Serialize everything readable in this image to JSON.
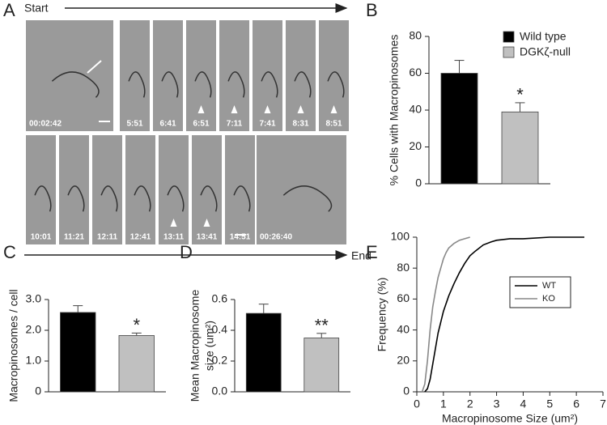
{
  "figure": {
    "panel_labels": [
      "A",
      "B",
      "C",
      "D",
      "E"
    ],
    "panel_a": {
      "start": "Start",
      "end": "End",
      "timestamps": [
        "00:02:42",
        "5:51",
        "6:41",
        "6:51",
        "7:11",
        "7:41",
        "8:31",
        "8:51",
        "10:01",
        "11:21",
        "12:11",
        "12:41",
        "13:11",
        "13:41",
        "14:51",
        "00:26:40"
      ]
    }
  },
  "chart_data": [
    {
      "type": "bar",
      "ylabel": "% Cells with Macropinosomes",
      "categories": [
        null
      ],
      "series": [
        {
          "name": "Wild type",
          "color": "#000000",
          "values": [
            60
          ],
          "errors": [
            7
          ]
        },
        {
          "name": "DGKζ-null",
          "color": "#c0c0c0",
          "values": [
            39
          ],
          "errors": [
            5
          ]
        }
      ],
      "annotation": "*",
      "legend": "upper right",
      "ylim": [
        0,
        80
      ],
      "yticks": [
        0,
        20,
        40,
        60,
        80
      ]
    },
    {
      "type": "bar",
      "ylabel": "Macropinosomes / cell",
      "categories": [
        null,
        null
      ],
      "values": [
        2.58,
        1.83
      ],
      "errors": [
        0.22,
        0.08
      ],
      "colors": [
        "#000000",
        "#c0c0c0"
      ],
      "annotation": "*",
      "ylim": [
        0,
        3
      ],
      "yticks": [
        0,
        {
          "value": 1,
          "label": "1.0"
        },
        {
          "value": 2,
          "label": "2.0"
        },
        {
          "value": 3,
          "label": "3.0"
        }
      ]
    },
    {
      "type": "bar",
      "ylabel": [
        "Mean Macropinosome",
        "size (um²)"
      ],
      "categories": [
        null,
        null
      ],
      "values": [
        0.51,
        0.35
      ],
      "errors": [
        0.06,
        0.03
      ],
      "colors": [
        "#000000",
        "#c0c0c0"
      ],
      "annotation": "**",
      "ylim": [
        0,
        0.6
      ],
      "yticks": [
        {
          "value": 0,
          "label": "0.0"
        },
        0.2,
        0.4,
        0.6
      ]
    },
    {
      "type": "line",
      "xlabel": "Macropinosome Size (um²)",
      "ylabel": "Frequency (%)",
      "legend": "right",
      "series": [
        {
          "name": "WT",
          "color": "#000000",
          "x": [
            0.3,
            0.4,
            0.5,
            0.6,
            0.7,
            0.8,
            0.9,
            1.0,
            1.2,
            1.4,
            1.6,
            1.8,
            2.0,
            2.2,
            2.5,
            2.8,
            3.0,
            3.5,
            4.0,
            5.0,
            6.3
          ],
          "values": [
            0,
            2,
            8,
            18,
            28,
            38,
            45,
            52,
            62,
            70,
            77,
            83,
            88,
            91,
            95,
            97,
            98,
            99,
            99,
            100,
            100
          ]
        },
        {
          "name": "KO",
          "color": "#888888",
          "x": [
            0.2,
            0.3,
            0.4,
            0.5,
            0.6,
            0.7,
            0.8,
            0.9,
            1.0,
            1.1,
            1.2,
            1.4,
            1.6,
            1.8,
            2.0
          ],
          "values": [
            0,
            5,
            20,
            40,
            55,
            65,
            74,
            80,
            86,
            90,
            93,
            96,
            98,
            99,
            100
          ]
        }
      ],
      "xlim": [
        0,
        7
      ],
      "xticks": [
        0,
        1,
        2,
        3,
        4,
        5,
        6,
        7
      ],
      "ylim": [
        0,
        100
      ],
      "yticks": [
        0,
        20,
        40,
        60,
        80,
        100
      ]
    }
  ]
}
